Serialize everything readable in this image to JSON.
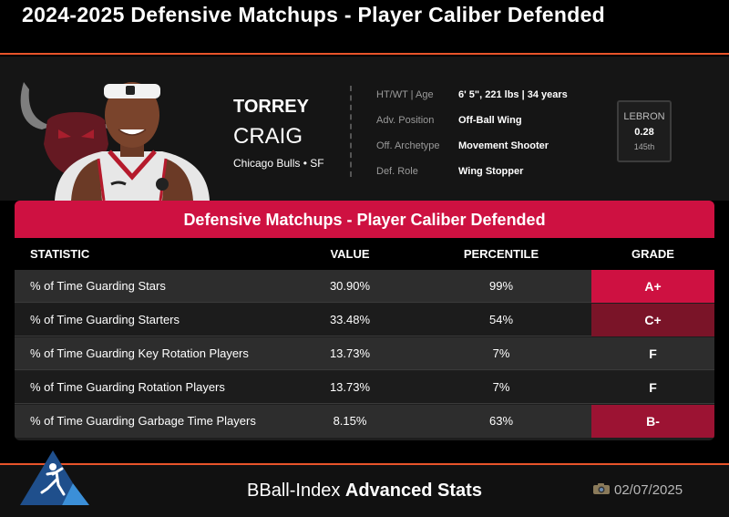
{
  "page": {
    "title": "2024-2025 Defensive Matchups - Player Caliber Defended"
  },
  "player": {
    "first_name": "TORREY",
    "last_name": "CRAIG",
    "team_position": "Chicago Bulls • SF",
    "photo_icon": "player-headshot-icon",
    "team_logo_icon": "bulls-logo-icon"
  },
  "info": [
    {
      "label": "HT/WT | Age",
      "value": "6' 5\", 221 lbs | 34 years"
    },
    {
      "label": "Adv. Position",
      "value": "Off-Ball Wing"
    },
    {
      "label": "Off. Archetype",
      "value": "Movement Shooter"
    },
    {
      "label": "Def. Role",
      "value": "Wing Stopper"
    }
  ],
  "lebron": {
    "label": "LEBRON",
    "value": "0.28",
    "rank": "145th"
  },
  "table": {
    "title": "Defensive Matchups - Player Caliber Defended",
    "headers": {
      "statistic": "STATISTIC",
      "value": "VALUE",
      "percentile": "PERCENTILE",
      "grade": "GRADE"
    },
    "rows": [
      {
        "statistic": "% of Time Guarding Stars",
        "value": "30.90%",
        "percentile": "99%",
        "grade": "A+",
        "grade_color": "#ce1141"
      },
      {
        "statistic": "% of Time Guarding Starters",
        "value": "33.48%",
        "percentile": "54%",
        "grade": "C+",
        "grade_color": "#7a1428"
      },
      {
        "statistic": "% of Time Guarding Key Rotation Players",
        "value": "13.73%",
        "percentile": "7%",
        "grade": "F",
        "grade_color": ""
      },
      {
        "statistic": "% of Time Guarding Rotation Players",
        "value": "13.73%",
        "percentile": "7%",
        "grade": "F",
        "grade_color": ""
      },
      {
        "statistic": "% of Time Guarding Garbage Time Players",
        "value": "8.15%",
        "percentile": "63%",
        "grade": "B-",
        "grade_color": "#9c1333"
      }
    ]
  },
  "footer": {
    "brand_light": "BBall-Index ",
    "brand_bold": "Advanced Stats",
    "date": "02/07/2025",
    "date_icon": "camera-icon",
    "logo_icon": "bball-index-logo-icon"
  },
  "colors": {
    "accent": "#ce1141",
    "orange_rule": "#e8542a"
  }
}
